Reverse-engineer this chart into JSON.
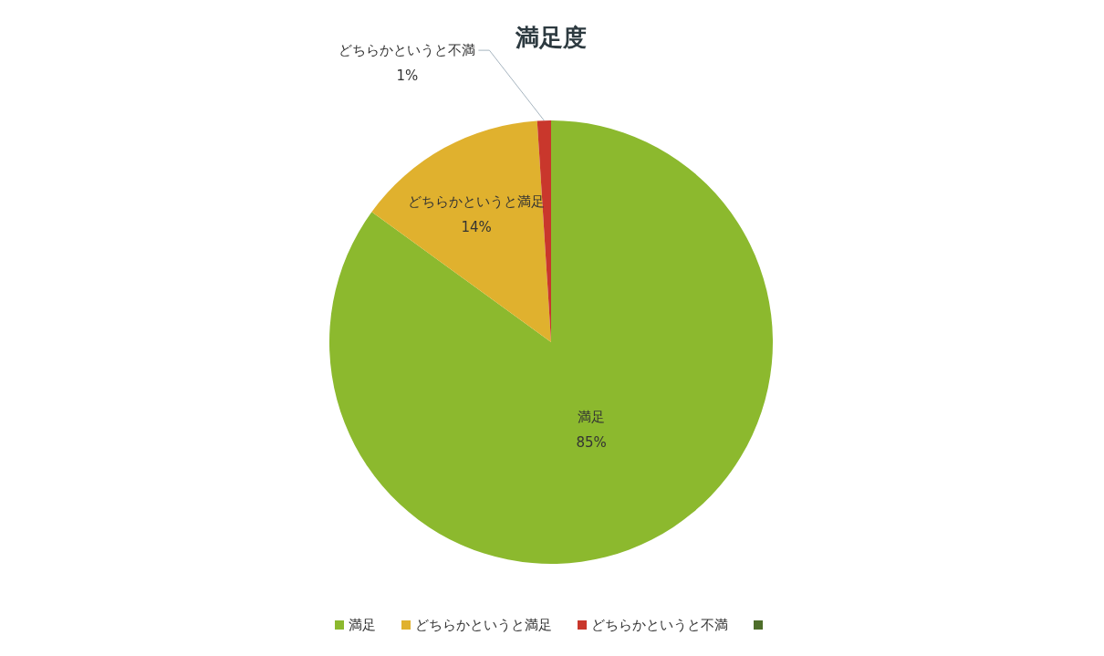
{
  "chart_data": {
    "type": "pie",
    "title": "満足度",
    "categories": [
      "満足",
      "どちらかというと満足",
      "どちらかというと不満",
      null
    ],
    "values": [
      85,
      14,
      1,
      0
    ],
    "colors": [
      "#8cb92e",
      "#e0b12e",
      "#c9372c",
      "#4e6e2a"
    ],
    "value_labels": [
      "85%",
      "14%",
      "1%",
      null
    ],
    "legend": "bottom"
  }
}
